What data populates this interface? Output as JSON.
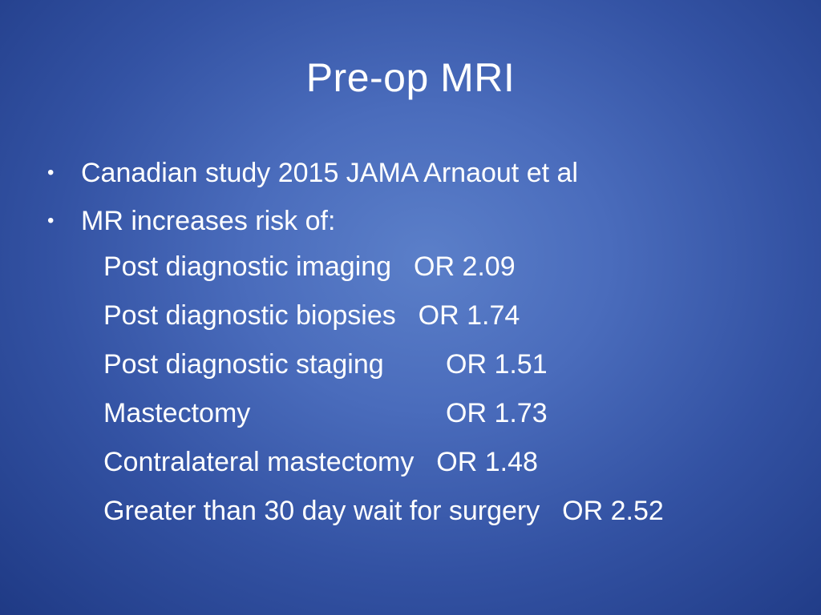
{
  "slide": {
    "title": "Pre-op MRI",
    "bullets": [
      {
        "symbol": "•",
        "text": "Canadian study 2015 JAMA  Arnaout et al"
      },
      {
        "symbol": "•",
        "text": "MR increases risk of:"
      }
    ],
    "risks": [
      {
        "label": "Post diagnostic imaging ",
        "value": "OR 2.09"
      },
      {
        "label": "Post diagnostic biopsies ",
        "value": "OR 1.74"
      },
      {
        "label": "Post diagnostic staging",
        "value": "OR 1.51"
      },
      {
        "label": "Mastectomy",
        "value": "OR 1.73"
      },
      {
        "label": "Contralateral mastectomy ",
        "value": "OR 1.48"
      },
      {
        "label": "Greater than 30 day wait for surgery ",
        "value": "OR 2.52"
      }
    ]
  },
  "colors": {
    "background_center": "#5b7fc9",
    "background_edge": "#1f3a85",
    "text": "#ffffff"
  }
}
